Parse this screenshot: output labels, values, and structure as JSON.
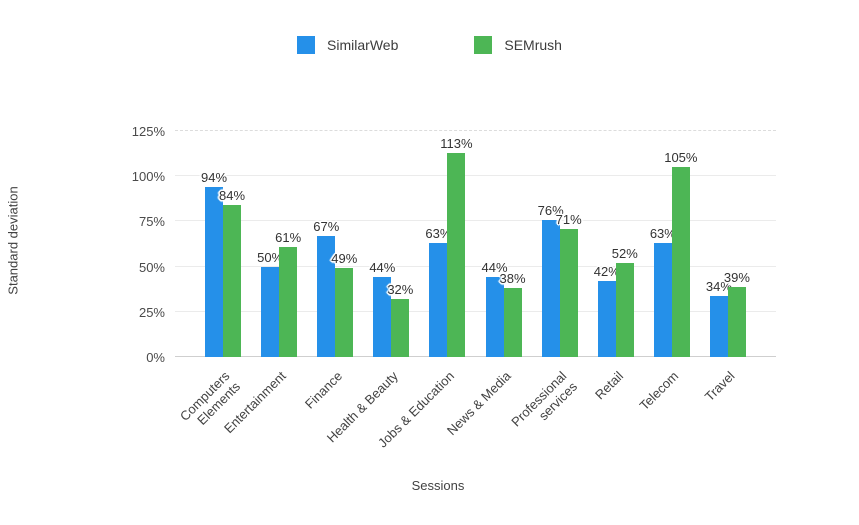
{
  "chart_data": {
    "type": "bar",
    "title": "",
    "xlabel": "Sessions",
    "ylabel": "Standard deviation",
    "categories": [
      "Computers\nElements",
      "Entertainment",
      "Finance",
      "Health & Beauty",
      "Jobs & Education",
      "News & Media",
      "Professional\nservices",
      "Retail",
      "Telecom",
      "Travel"
    ],
    "series": [
      {
        "name": "SimilarWeb",
        "color": "#2590E9",
        "values": [
          94,
          50,
          67,
          44,
          63,
          44,
          76,
          42,
          63,
          34
        ]
      },
      {
        "name": "SEMrush",
        "color": "#4DB655",
        "values": [
          84,
          61,
          49,
          32,
          113,
          38,
          71,
          52,
          105,
          39
        ]
      }
    ],
    "value_suffix": "%",
    "y_ticks": [
      "0%",
      "25%",
      "50%",
      "75%",
      "100%",
      "125%"
    ],
    "ylim": [
      0,
      125
    ],
    "grid": true,
    "legend_position": "top"
  }
}
